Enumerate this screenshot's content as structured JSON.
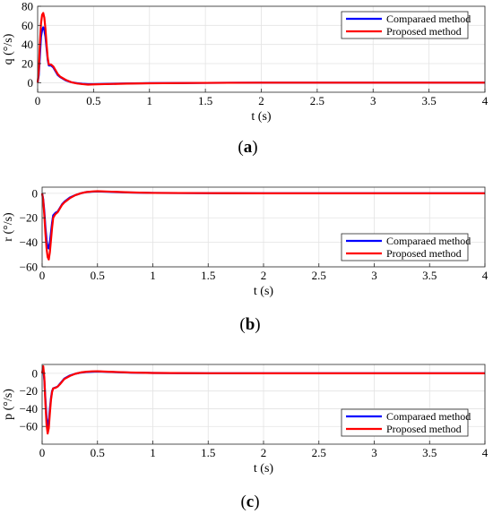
{
  "chart_data": [
    {
      "type": "line",
      "panel_label": "(a)",
      "xlabel": "t (s)",
      "ylabel": "q (°/s)",
      "xlim": [
        0,
        4
      ],
      "ylim": [
        -10,
        80
      ],
      "xticks": [
        0,
        0.5,
        1,
        1.5,
        2,
        2.5,
        3,
        3.5,
        4
      ],
      "xtick_labels": [
        "0",
        "0.5",
        "1",
        "1.5",
        "2",
        "2.5",
        "3",
        "3.5",
        "4"
      ],
      "yticks": [
        0,
        20,
        40,
        60,
        80
      ],
      "ytick_labels": [
        "0",
        "20",
        "40",
        "60",
        "80"
      ],
      "grid": true,
      "legend": "top-right",
      "series": [
        {
          "name": "Comparaed method",
          "color": "#0000ff",
          "x": [
            0,
            0.01,
            0.02,
            0.03,
            0.04,
            0.05,
            0.06,
            0.07,
            0.08,
            0.09,
            0.1,
            0.12,
            0.14,
            0.16,
            0.18,
            0.2,
            0.25,
            0.3,
            0.35,
            0.4,
            0.45,
            0.5,
            0.6,
            0.8,
            1,
            1.5,
            2,
            3,
            4
          ],
          "y": [
            0,
            8,
            28,
            48,
            55,
            58,
            55,
            48,
            36,
            24,
            18,
            18,
            16,
            12,
            8,
            6,
            2.5,
            0.5,
            -0.5,
            -1.2,
            -1.5,
            -1.5,
            -1.3,
            -0.8,
            -0.5,
            -0.2,
            0,
            0,
            0
          ]
        },
        {
          "name": "Proposed method",
          "color": "#ff0000",
          "x": [
            0,
            0.01,
            0.02,
            0.03,
            0.04,
            0.05,
            0.06,
            0.07,
            0.08,
            0.09,
            0.1,
            0.12,
            0.14,
            0.16,
            0.18,
            0.2,
            0.25,
            0.3,
            0.35,
            0.4,
            0.45,
            0.5,
            0.6,
            0.8,
            1,
            1.5,
            2,
            3,
            4
          ],
          "y": [
            0,
            12,
            40,
            62,
            71,
            73,
            68,
            56,
            40,
            26,
            19,
            19,
            17,
            13,
            9,
            6.5,
            3,
            0.5,
            -0.8,
            -1.5,
            -2,
            -1.8,
            -1.5,
            -1,
            -0.6,
            -0.2,
            0,
            0,
            0
          ]
        }
      ]
    },
    {
      "type": "line",
      "panel_label": "(b)",
      "xlabel": "t (s)",
      "ylabel": "r (°/s)",
      "xlim": [
        0,
        4
      ],
      "ylim": [
        -60,
        5
      ],
      "xticks": [
        0,
        0.5,
        1,
        1.5,
        2,
        2.5,
        3,
        3.5,
        4
      ],
      "xtick_labels": [
        "0",
        "0.5",
        "1",
        "1.5",
        "2",
        "2.5",
        "3",
        "3.5",
        "4"
      ],
      "yticks": [
        -60,
        -40,
        -20,
        0
      ],
      "ytick_labels": [
        "−60",
        "−40",
        "−20",
        "0"
      ],
      "grid": true,
      "legend": "bottom-right",
      "series": [
        {
          "name": "Comparaed method",
          "color": "#0000ff",
          "x": [
            0,
            0.01,
            0.02,
            0.03,
            0.04,
            0.05,
            0.06,
            0.07,
            0.08,
            0.09,
            0.1,
            0.12,
            0.14,
            0.16,
            0.18,
            0.2,
            0.25,
            0.3,
            0.35,
            0.4,
            0.45,
            0.5,
            0.6,
            0.8,
            1,
            1.5,
            2,
            3,
            4
          ],
          "y": [
            0,
            -5,
            -15,
            -28,
            -38,
            -44,
            -45,
            -40,
            -32,
            -24,
            -18,
            -16,
            -15,
            -12,
            -9,
            -7,
            -3.5,
            -1.5,
            0,
            1,
            1.3,
            1.5,
            1.2,
            0.6,
            0.3,
            0.1,
            0,
            0,
            0
          ]
        },
        {
          "name": "Proposed method",
          "color": "#ff0000",
          "x": [
            0,
            0.01,
            0.02,
            0.03,
            0.04,
            0.05,
            0.06,
            0.07,
            0.08,
            0.09,
            0.1,
            0.12,
            0.14,
            0.16,
            0.18,
            0.2,
            0.25,
            0.3,
            0.35,
            0.4,
            0.45,
            0.5,
            0.6,
            0.8,
            1,
            1.5,
            2,
            3,
            4
          ],
          "y": [
            0,
            -6,
            -18,
            -33,
            -45,
            -52,
            -54,
            -48,
            -38,
            -28,
            -20,
            -17,
            -15.5,
            -12.5,
            -9.5,
            -7.5,
            -4,
            -1.5,
            0,
            1,
            1.5,
            1.7,
            1.4,
            0.7,
            0.3,
            0.1,
            0,
            0,
            0
          ]
        }
      ]
    },
    {
      "type": "line",
      "panel_label": "(c)",
      "xlabel": "t (s)",
      "ylabel": "p (°/s)",
      "xlim": [
        0,
        4
      ],
      "ylim": [
        -80,
        10
      ],
      "xticks": [
        0,
        0.5,
        1,
        1.5,
        2,
        2.5,
        3,
        3.5,
        4
      ],
      "xtick_labels": [
        "0",
        "0.5",
        "1",
        "1.5",
        "2",
        "2.5",
        "3",
        "3.5",
        "4"
      ],
      "yticks": [
        -60,
        -40,
        -20,
        0
      ],
      "ytick_labels": [
        "−60",
        "−40",
        "−20",
        "0"
      ],
      "grid": true,
      "legend": "bottom-right",
      "series": [
        {
          "name": "Comparaed method",
          "color": "#0000ff",
          "x": [
            0,
            0.01,
            0.02,
            0.03,
            0.04,
            0.05,
            0.06,
            0.07,
            0.08,
            0.09,
            0.1,
            0.12,
            0.14,
            0.16,
            0.18,
            0.2,
            0.25,
            0.3,
            0.35,
            0.4,
            0.45,
            0.5,
            0.6,
            0.8,
            1,
            1.5,
            2,
            3,
            4
          ],
          "y": [
            0,
            5,
            -8,
            -30,
            -50,
            -60,
            -55,
            -40,
            -28,
            -20,
            -17,
            -16,
            -15,
            -12,
            -9,
            -6,
            -2.5,
            -0.5,
            0.8,
            1.5,
            1.8,
            2,
            1.6,
            0.8,
            0.4,
            0.1,
            0,
            0,
            0
          ]
        },
        {
          "name": "Proposed method",
          "color": "#ff0000",
          "x": [
            0,
            0.01,
            0.02,
            0.03,
            0.04,
            0.05,
            0.06,
            0.07,
            0.08,
            0.09,
            0.1,
            0.12,
            0.14,
            0.16,
            0.18,
            0.2,
            0.25,
            0.3,
            0.35,
            0.4,
            0.45,
            0.5,
            0.6,
            0.8,
            1,
            1.5,
            2,
            3,
            4
          ],
          "y": [
            0,
            8,
            -5,
            -35,
            -58,
            -68,
            -62,
            -45,
            -30,
            -21,
            -17,
            -16.5,
            -15,
            -12.5,
            -9.5,
            -6.5,
            -3,
            -0.5,
            1,
            1.8,
            2.2,
            2.3,
            1.8,
            0.9,
            0.4,
            0.1,
            0,
            0,
            0
          ]
        }
      ]
    }
  ]
}
